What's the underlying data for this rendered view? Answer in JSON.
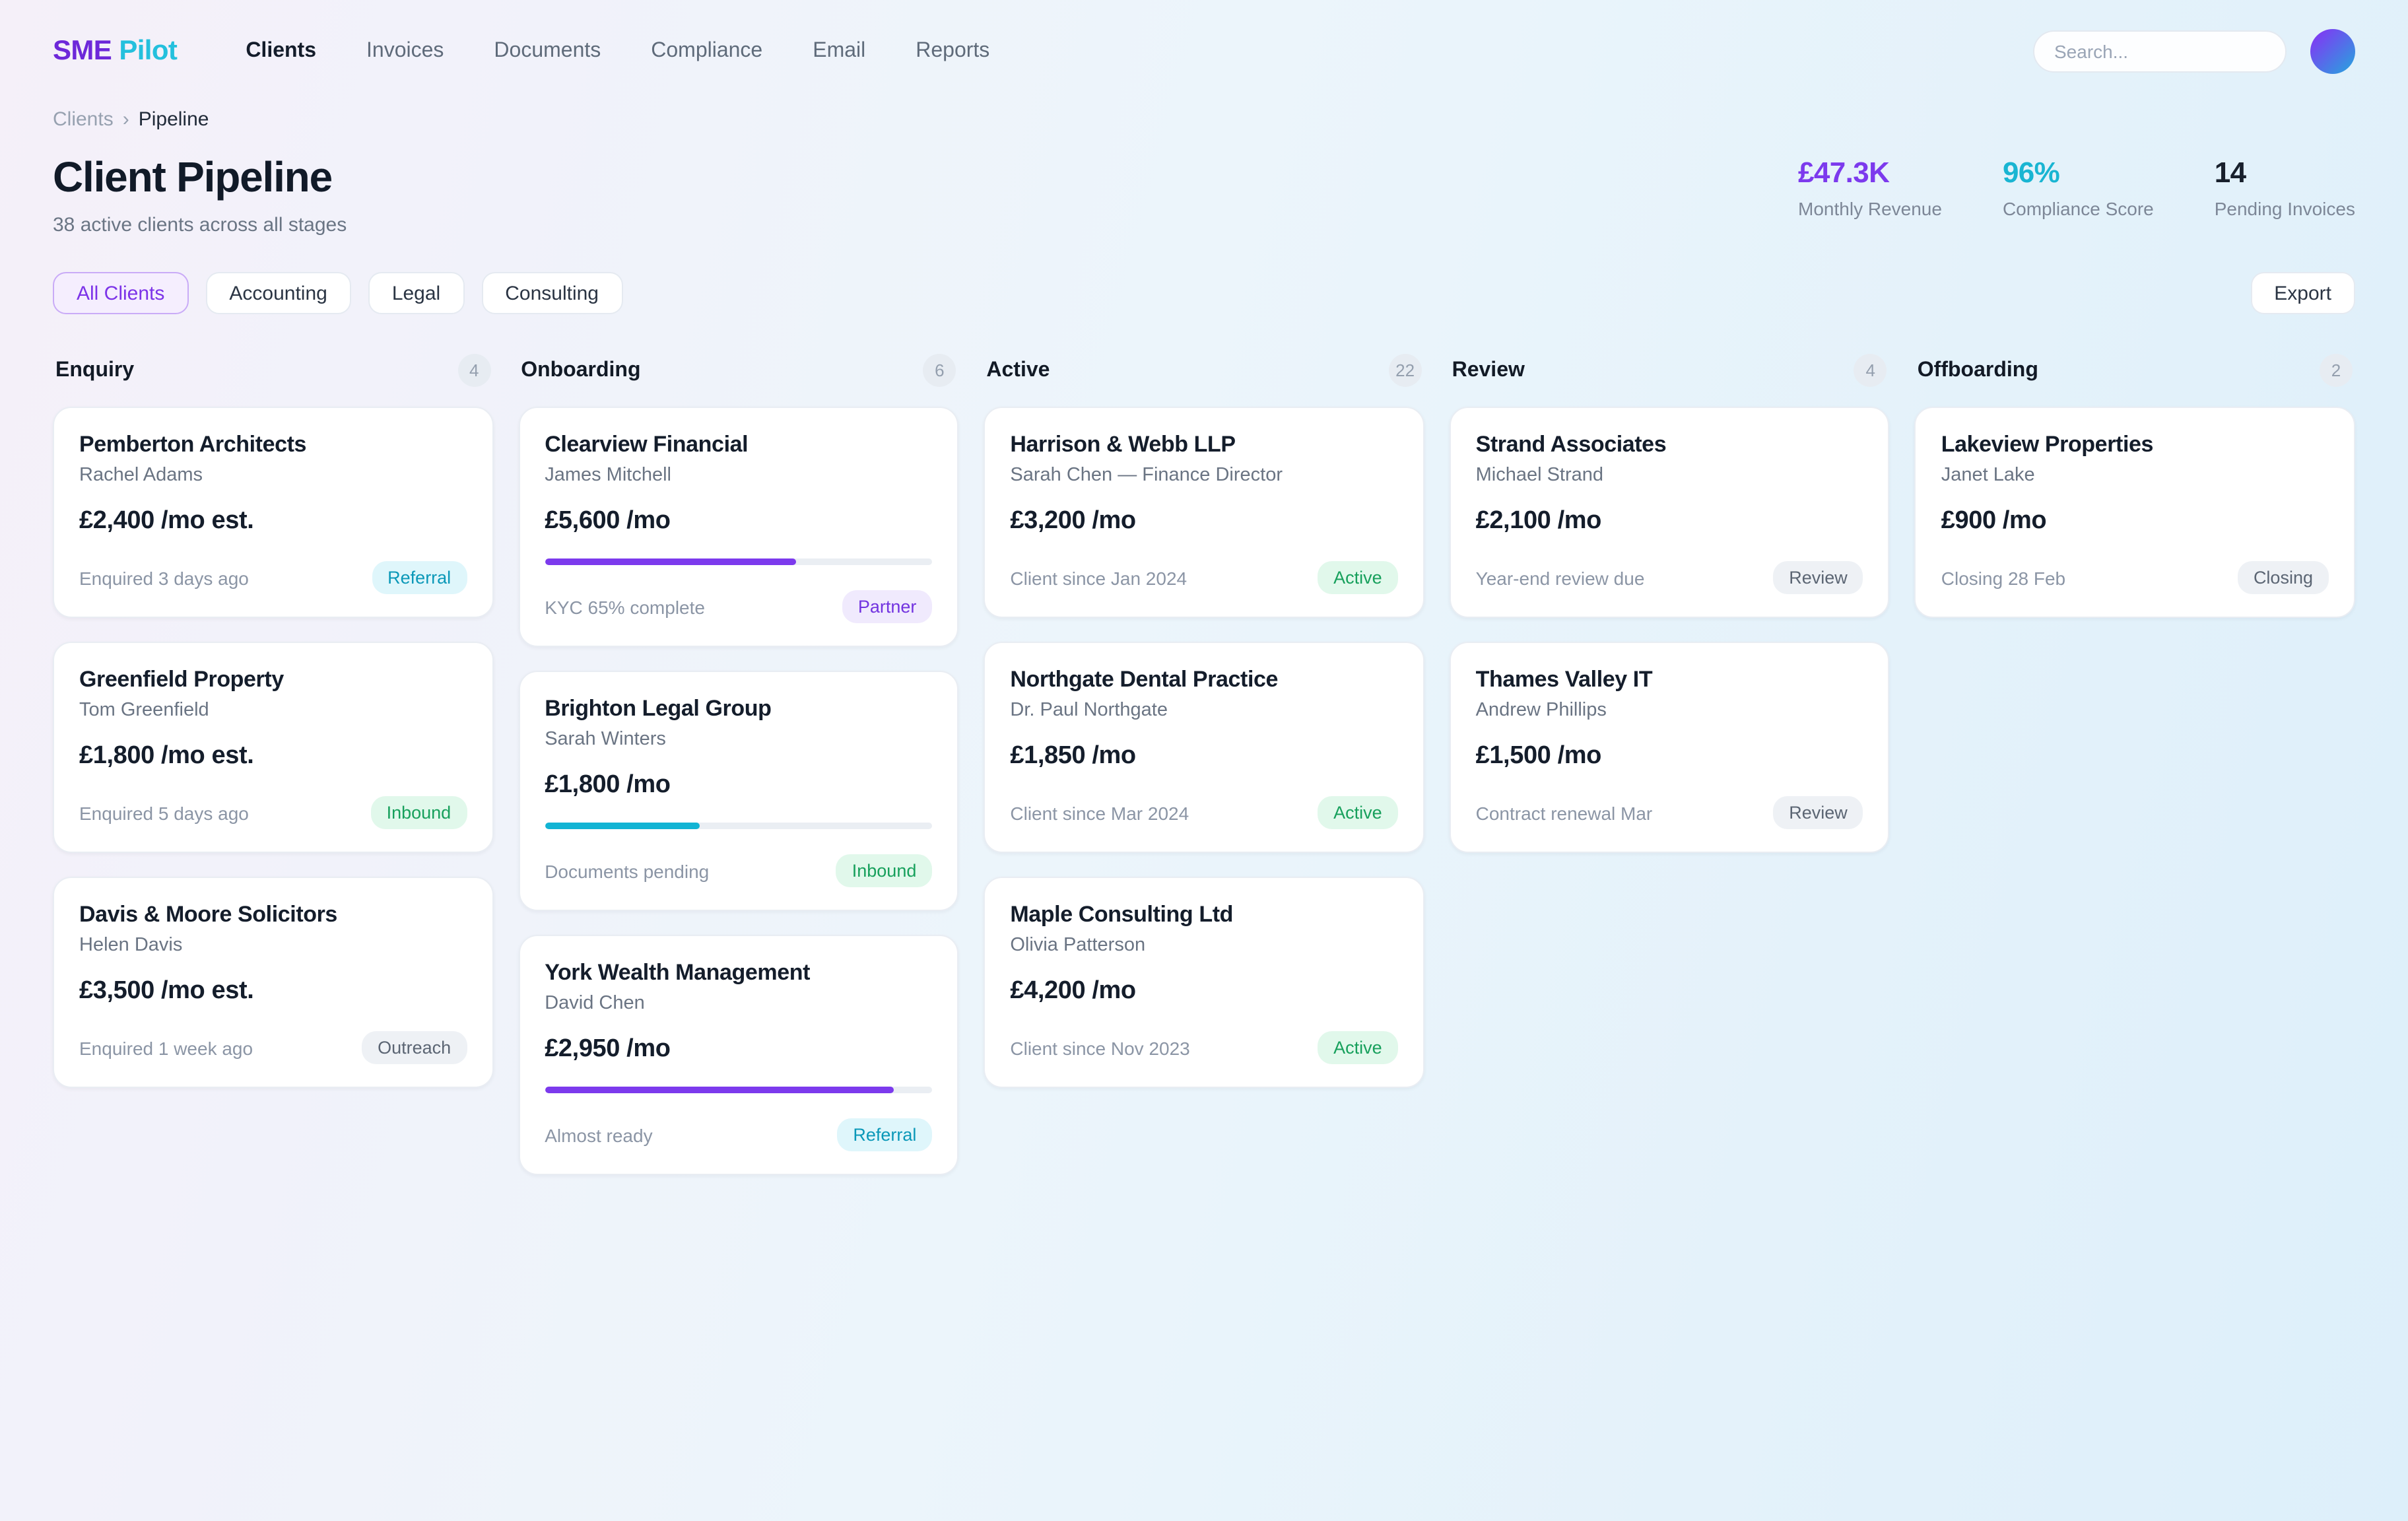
{
  "nav": {
    "brand": {
      "part1": "SME",
      "part2": "Pilot"
    },
    "items": [
      {
        "label": "Clients",
        "active": true
      },
      {
        "label": "Invoices",
        "active": false
      },
      {
        "label": "Documents",
        "active": false
      },
      {
        "label": "Compliance",
        "active": false
      },
      {
        "label": "Email",
        "active": false
      },
      {
        "label": "Reports",
        "active": false
      }
    ],
    "search_placeholder": "Search..."
  },
  "breadcrumb": {
    "parent": "Clients",
    "separator": "›",
    "current": "Pipeline"
  },
  "header": {
    "title": "Client Pipeline",
    "subtitle": "38 active clients across all stages",
    "stats": [
      {
        "value": "£47.3K",
        "label": "Monthly Revenue",
        "color": "#7c3aed"
      },
      {
        "value": "96%",
        "label": "Compliance Score",
        "color": "#19b5d2"
      },
      {
        "value": "14",
        "label": "Pending Invoices",
        "color": "#18202c"
      }
    ]
  },
  "filters": {
    "chips": [
      {
        "label": "All Clients",
        "active": true
      },
      {
        "label": "Accounting",
        "active": false
      },
      {
        "label": "Legal",
        "active": false
      },
      {
        "label": "Consulting",
        "active": false
      }
    ],
    "export_label": "Export"
  },
  "board": {
    "columns": [
      {
        "name": "Enquiry",
        "count": "4",
        "cards": [
          {
            "company": "Pemberton Architects",
            "contact": "Rachel Adams",
            "amount": "£2,400 /mo est.",
            "meta": "Enquired 3 days ago",
            "badge": {
              "label": "Referral",
              "type": "cyan"
            }
          },
          {
            "company": "Greenfield Property",
            "contact": "Tom Greenfield",
            "amount": "£1,800 /mo est.",
            "meta": "Enquired 5 days ago",
            "badge": {
              "label": "Inbound",
              "type": "green"
            }
          },
          {
            "company": "Davis & Moore Solicitors",
            "contact": "Helen Davis",
            "amount": "£3,500 /mo est.",
            "meta": "Enquired 1 week ago",
            "badge": {
              "label": "Outreach",
              "type": "gray"
            }
          }
        ]
      },
      {
        "name": "Onboarding",
        "count": "6",
        "cards": [
          {
            "company": "Clearview Financial",
            "contact": "James Mitchell",
            "amount": "£5,600 /mo",
            "progress": {
              "percent": 65,
              "color": "#7c3aed"
            },
            "meta": "KYC 65% complete",
            "badge": {
              "label": "Partner",
              "type": "purple"
            }
          },
          {
            "company": "Brighton Legal Group",
            "contact": "Sarah Winters",
            "amount": "£1,800 /mo",
            "progress": {
              "percent": 40,
              "color": "#12b4d4"
            },
            "meta": "Documents pending",
            "badge": {
              "label": "Inbound",
              "type": "green"
            }
          },
          {
            "company": "York Wealth Management",
            "contact": "David Chen",
            "amount": "£2,950 /mo",
            "progress": {
              "percent": 90,
              "color": "#7c3aed"
            },
            "meta": "Almost ready",
            "badge": {
              "label": "Referral",
              "type": "cyan"
            }
          }
        ]
      },
      {
        "name": "Active",
        "count": "22",
        "cards": [
          {
            "company": "Harrison & Webb LLP",
            "contact": "Sarah Chen — Finance Director",
            "amount": "£3,200 /mo",
            "meta": "Client since Jan 2024",
            "badge": {
              "label": "Active",
              "type": "green"
            }
          },
          {
            "company": "Northgate Dental Practice",
            "contact": "Dr. Paul Northgate",
            "amount": "£1,850 /mo",
            "meta": "Client since Mar 2024",
            "badge": {
              "label": "Active",
              "type": "green"
            }
          },
          {
            "company": "Maple Consulting Ltd",
            "contact": "Olivia Patterson",
            "amount": "£4,200 /mo",
            "meta": "Client since Nov 2023",
            "badge": {
              "label": "Active",
              "type": "green"
            }
          }
        ]
      },
      {
        "name": "Review",
        "count": "4",
        "cards": [
          {
            "company": "Strand Associates",
            "contact": "Michael Strand",
            "amount": "£2,100 /mo",
            "meta": "Year-end review due",
            "badge": {
              "label": "Review",
              "type": "gray"
            }
          },
          {
            "company": "Thames Valley IT",
            "contact": "Andrew Phillips",
            "amount": "£1,500 /mo",
            "meta": "Contract renewal Mar",
            "badge": {
              "label": "Review",
              "type": "gray"
            }
          }
        ]
      },
      {
        "name": "Offboarding",
        "count": "2",
        "cards": [
          {
            "company": "Lakeview Properties",
            "contact": "Janet Lake",
            "amount": "£900 /mo",
            "meta": "Closing 28 Feb",
            "badge": {
              "label": "Closing",
              "type": "gray"
            }
          }
        ]
      }
    ]
  }
}
